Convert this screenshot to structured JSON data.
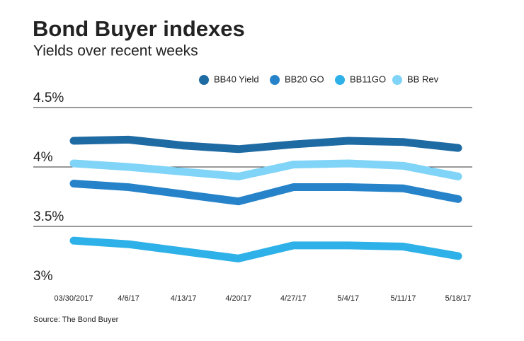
{
  "chart_data": {
    "type": "line",
    "title": "Bond Buyer indexes",
    "subtitle": "Yields over recent weeks",
    "source": "Source: The Bond Buyer",
    "categories": [
      "03/30/2017",
      "4/6/17",
      "4/13/17",
      "4/20/17",
      "4/27/17",
      "5/4/17",
      "5/11/17",
      "5/18/17"
    ],
    "series": [
      {
        "name": "BB40 Yield",
        "color": "#1e6aa3",
        "values": [
          4.22,
          4.23,
          4.18,
          4.15,
          4.19,
          4.22,
          4.21,
          4.16
        ]
      },
      {
        "name": "BB20 GO",
        "color": "#2683c9",
        "values": [
          3.86,
          3.83,
          3.77,
          3.71,
          3.83,
          3.83,
          3.82,
          3.73
        ]
      },
      {
        "name": "BB11GO",
        "color": "#2eb1e8",
        "values": [
          3.38,
          3.35,
          3.29,
          3.23,
          3.34,
          3.34,
          3.33,
          3.25
        ]
      },
      {
        "name": "BB Rev",
        "color": "#80d4f7",
        "values": [
          4.03,
          4.0,
          3.96,
          3.92,
          4.02,
          4.03,
          4.01,
          3.92
        ]
      }
    ],
    "ylim": [
      3,
      4.5
    ],
    "yticks": [
      {
        "value": 3,
        "label": "3%"
      },
      {
        "value": 3.5,
        "label": "3.5%"
      },
      {
        "value": 4,
        "label": "4%"
      },
      {
        "value": 4.5,
        "label": "4.5%"
      }
    ],
    "grid": true
  }
}
